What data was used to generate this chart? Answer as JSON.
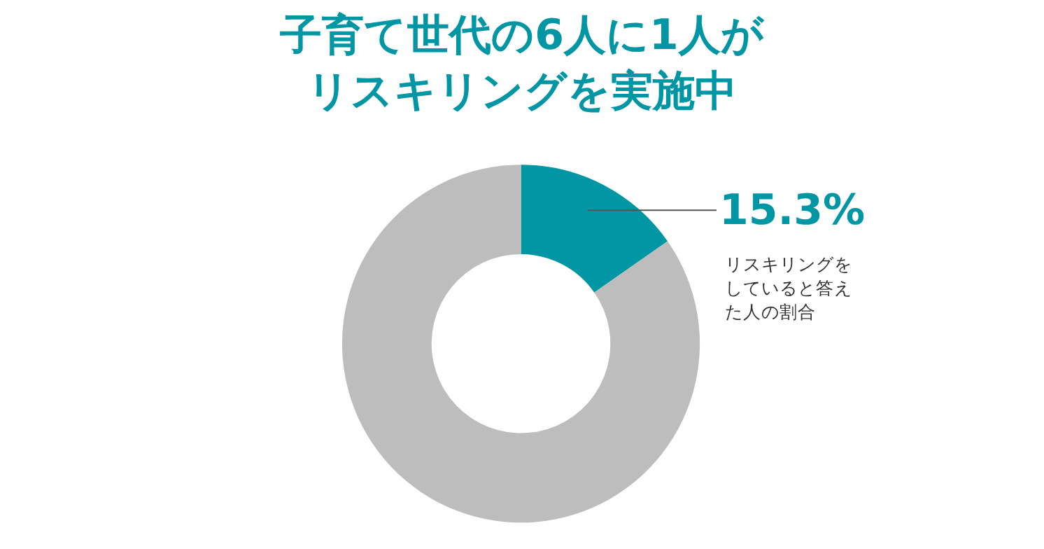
{
  "chart_data": {
    "type": "donut",
    "title": "子育て世代の6人に1人がリスキリングを実施中",
    "categories": [
      null,
      null
    ],
    "values": [
      15.3,
      84.7
    ],
    "colors": [
      "#0096a3",
      "#bdbdbd"
    ],
    "annotations": [
      "15.3%",
      "リスキリングをしていると答えた人の割合"
    ],
    "legend": false
  }
}
